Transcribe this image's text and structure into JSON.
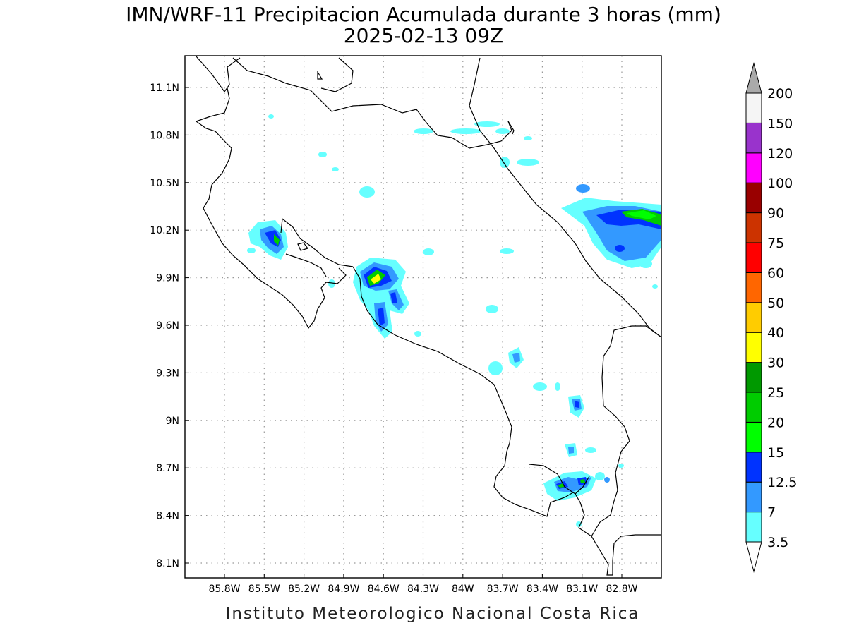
{
  "title": {
    "line1": "IMN/WRF-11 Precipitacion Acumulada durante 3 horas (mm)",
    "line2": "2025-02-13 09Z"
  },
  "credit": "Instituto Meteorologico Nacional Costa Rica",
  "map": {
    "x_ticks": [
      {
        "lon": -85.8,
        "label": "85.8W"
      },
      {
        "lon": -85.5,
        "label": "85.5W"
      },
      {
        "lon": -85.2,
        "label": "85.2W"
      },
      {
        "lon": -84.9,
        "label": "84.9W"
      },
      {
        "lon": -84.6,
        "label": "84.6W"
      },
      {
        "lon": -84.3,
        "label": "84.3W"
      },
      {
        "lon": -84.0,
        "label": "84W"
      },
      {
        "lon": -83.7,
        "label": "83.7W"
      },
      {
        "lon": -83.4,
        "label": "83.4W"
      },
      {
        "lon": -83.1,
        "label": "83.1W"
      },
      {
        "lon": -82.8,
        "label": "82.8W"
      }
    ],
    "y_ticks": [
      {
        "lat": 11.1,
        "label": "11.1N"
      },
      {
        "lat": 10.8,
        "label": "10.8N"
      },
      {
        "lat": 10.5,
        "label": "10.5N"
      },
      {
        "lat": 10.2,
        "label": "10.2N"
      },
      {
        "lat": 9.9,
        "label": "9.9N"
      },
      {
        "lat": 9.6,
        "label": "9.6N"
      },
      {
        "lat": 9.3,
        "label": "9.3N"
      },
      {
        "lat": 9.0,
        "label": "9N"
      },
      {
        "lat": 8.7,
        "label": "8.7N"
      },
      {
        "lat": 8.4,
        "label": "8.4N"
      },
      {
        "lat": 8.1,
        "label": "8.1N"
      }
    ],
    "grid": "dotted"
  },
  "colorbar": {
    "levels": [
      {
        "label": "3.5",
        "color": "#66ffff"
      },
      {
        "label": "7",
        "color": "#3399ff"
      },
      {
        "label": "12.5",
        "color": "#0033ff"
      },
      {
        "label": "15",
        "color": "#00ff00"
      },
      {
        "label": "20",
        "color": "#00cc00"
      },
      {
        "label": "25",
        "color": "#009900"
      },
      {
        "label": "30",
        "color": "#ffff00"
      },
      {
        "label": "40",
        "color": "#ffcc00"
      },
      {
        "label": "50",
        "color": "#ff6600"
      },
      {
        "label": "60",
        "color": "#ff0000"
      },
      {
        "label": "75",
        "color": "#cc3300"
      },
      {
        "label": "90",
        "color": "#990000"
      },
      {
        "label": "100",
        "color": "#ff00ff"
      },
      {
        "label": "120",
        "color": "#9933cc"
      },
      {
        "label": "150",
        "color": "#f5f5f5"
      },
      {
        "label": "200",
        "color": "#aaaaaa"
      }
    ]
  }
}
